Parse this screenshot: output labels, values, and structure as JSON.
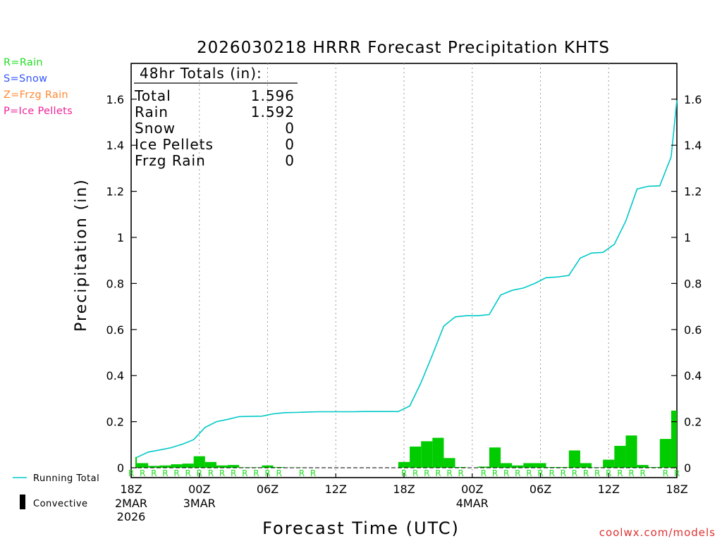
{
  "chart_data": {
    "type": "bar",
    "title": "2026030218 HRRR Forecast Precipitation KHTS",
    "xlabel": "Forecast Time (UTC)",
    "ylabel": "Precipitation (in)",
    "ylim": [
      0,
      1.75
    ],
    "yticks": [
      "0",
      "0.2",
      "0.4",
      "0.6",
      "0.8",
      "1",
      "1.2",
      "1.4",
      "1.6"
    ],
    "xlim_hours": [
      0,
      48
    ],
    "grid": "vertical dotted lines every 6 hours",
    "x_ticks": [
      {
        "hour": 0,
        "label": "18Z",
        "sub": [
          "2MAR",
          "2026"
        ]
      },
      {
        "hour": 6,
        "label": "00Z",
        "sub": [
          "3MAR"
        ]
      },
      {
        "hour": 12,
        "label": "06Z",
        "sub": []
      },
      {
        "hour": 18,
        "label": "12Z",
        "sub": []
      },
      {
        "hour": 24,
        "label": "18Z",
        "sub": []
      },
      {
        "hour": 30,
        "label": "00Z",
        "sub": [
          "4MAR"
        ]
      },
      {
        "hour": 36,
        "label": "06Z",
        "sub": []
      },
      {
        "hour": 42,
        "label": "12Z",
        "sub": []
      },
      {
        "hour": 48,
        "label": "18Z",
        "sub": []
      }
    ],
    "hourly_precip": [
      0.047,
      0.02,
      0.008,
      0.01,
      0.015,
      0.018,
      0.05,
      0.025,
      0.01,
      0.012,
      0.002,
      0.002,
      0.01,
      0.003,
      0.001,
      0.001,
      0.0,
      0.0,
      0.0,
      0.0,
      0.0,
      0.0,
      0.0,
      0.0,
      0.025,
      0.092,
      0.115,
      0.13,
      0.042,
      0.003,
      0.0,
      0.005,
      0.088,
      0.02,
      0.01,
      0.02,
      0.02,
      0.003,
      0.003,
      0.075,
      0.02,
      0.002,
      0.035,
      0.095,
      0.14,
      0.012,
      0.003,
      0.125,
      0.248
    ],
    "running_total": {
      "name": "Running Total",
      "x": [
        0.5,
        1.5,
        2.5,
        3.5,
        4.5,
        5.5,
        6.5,
        7.5,
        8.5,
        9.5,
        10.5,
        11.5,
        12.5,
        13.5,
        14.5,
        15.5,
        16.5,
        17.5,
        18.5,
        19.5,
        20.5,
        21.5,
        22.5,
        23.5,
        24.5,
        25.5,
        26.5,
        27.5,
        28.5,
        29.5,
        30.5,
        31.5,
        32.5,
        33.5,
        34.5,
        35.5,
        36.5,
        37.5,
        38.5,
        39.5,
        40.5,
        41.5,
        42.5,
        43.5,
        44.5,
        45.5,
        46.5,
        47.5,
        48.0
      ],
      "y": [
        0.045,
        0.068,
        0.077,
        0.087,
        0.102,
        0.122,
        0.175,
        0.2,
        0.21,
        0.222,
        0.223,
        0.224,
        0.234,
        0.239,
        0.24,
        0.242,
        0.243,
        0.243,
        0.243,
        0.243,
        0.244,
        0.244,
        0.244,
        0.244,
        0.268,
        0.37,
        0.49,
        0.615,
        0.655,
        0.66,
        0.66,
        0.665,
        0.75,
        0.77,
        0.78,
        0.8,
        0.825,
        0.828,
        0.835,
        0.91,
        0.932,
        0.935,
        0.97,
        1.07,
        1.21,
        1.222,
        1.224,
        1.35,
        1.596
      ]
    },
    "ptype_markers": {
      "symbol": "R",
      "hours": [
        0,
        1,
        2,
        3,
        4,
        5,
        6,
        7,
        8,
        9,
        10,
        11,
        12,
        13,
        15,
        16,
        24,
        25,
        26,
        27,
        28,
        29,
        31,
        32,
        33,
        34,
        35,
        36,
        37,
        38,
        39,
        40,
        41,
        42,
        43,
        44,
        45,
        47,
        48
      ]
    },
    "colors": {
      "bars": "#00cc00",
      "running_total": "#00c8c8",
      "rain": "#22dd22",
      "snow": "#3355ff",
      "frzg_rain": "#ff8833",
      "ice_pellets": "#ee2299"
    }
  },
  "type_key": [
    {
      "text": "R=Rain",
      "color": "#22dd22"
    },
    {
      "text": "S=Snow",
      "color": "#3355ff"
    },
    {
      "text": "Z=Frzg Rain",
      "color": "#ff8833"
    },
    {
      "text": "P=Ice Pellets",
      "color": "#ee2299"
    }
  ],
  "totals_box": {
    "title": "48hr Totals (in):",
    "rows": [
      {
        "label": "Total",
        "value": "1.596"
      },
      {
        "label": "Rain",
        "value": "1.592"
      },
      {
        "label": "Snow",
        "value": "0"
      },
      {
        "label": "Ice Pellets",
        "value": "0"
      },
      {
        "label": "Frzg Rain",
        "value": "0"
      }
    ]
  },
  "legend": {
    "running_total": "Running Total",
    "convective": "Convective"
  },
  "footer": "coolwx.com/models"
}
